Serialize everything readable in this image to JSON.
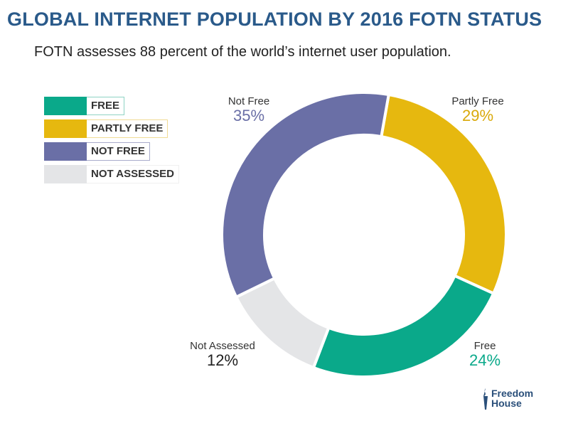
{
  "title": "GLOBAL INTERNET POPULATION BY 2016 FOTN STATUS",
  "subtitle": "FOTN assesses 88 percent of the world’s internet user population.",
  "chart_data": {
    "type": "pie",
    "donut": true,
    "title": "GLOBAL INTERNET POPULATION BY 2016 FOTN STATUS",
    "subtitle": "FOTN assesses 88 percent of the world’s internet user population.",
    "legend_position": "top-left",
    "slices": [
      {
        "name": "Partly Free",
        "legend": "PARTLY FREE",
        "value": 29,
        "label": "29%",
        "color": "#e6b80f"
      },
      {
        "name": "Free",
        "legend": "FREE",
        "value": 24,
        "label": "24%",
        "color": "#0aa98a"
      },
      {
        "name": "Not Assessed",
        "legend": "NOT ASSESSED",
        "value": 12,
        "label": "12%",
        "color": "#e4e5e7"
      },
      {
        "name": "Not Free",
        "legend": "NOT FREE",
        "value": 35,
        "label": "35%",
        "color": "#6a6fa6"
      }
    ],
    "legend_order": [
      "FREE",
      "PARTLY FREE",
      "NOT FREE",
      "NOT ASSESSED"
    ]
  },
  "logo": {
    "line1": "Freedom",
    "line2": "House"
  }
}
